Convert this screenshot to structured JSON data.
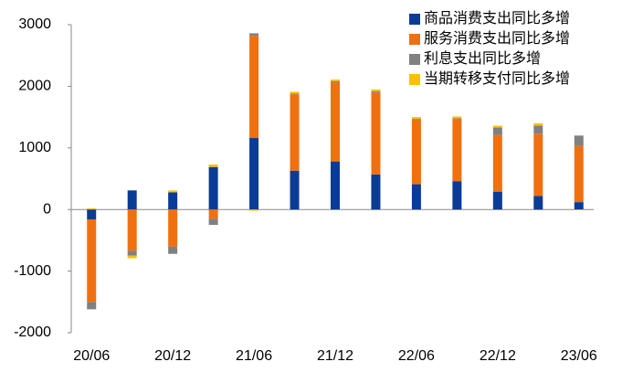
{
  "chart_data": {
    "type": "bar",
    "stacked": true,
    "categories": [
      "20/06",
      null,
      "20/12",
      null,
      "21/06",
      null,
      "21/12",
      null,
      "22/06",
      null,
      "22/12",
      null,
      "23/06"
    ],
    "series": [
      {
        "name": "商品消费支出同比多增",
        "color": "#0a3b96",
        "values": [
          -160,
          310,
          280,
          690,
          1160,
          630,
          780,
          570,
          410,
          460,
          290,
          220,
          120
        ]
      },
      {
        "name": "服务消费支出同比多增",
        "color": "#f07010",
        "values": [
          -1340,
          -670,
          -600,
          -150,
          1660,
          1240,
          1280,
          1330,
          1040,
          1000,
          920,
          1010,
          910
        ]
      },
      {
        "name": "利息支出同比多增",
        "color": "#808080",
        "values": [
          -120,
          -80,
          -120,
          -100,
          40,
          10,
          20,
          20,
          20,
          20,
          120,
          130,
          170
        ]
      },
      {
        "name": "当期转移支付同比多增",
        "color": "#ffc000",
        "values": [
          20,
          -40,
          30,
          40,
          -20,
          30,
          30,
          30,
          30,
          30,
          30,
          40,
          -10
        ]
      }
    ],
    "ylim": [
      -2000,
      3000
    ],
    "yticks": [
      -2000,
      -1000,
      0,
      1000,
      2000,
      3000
    ],
    "grid": false
  }
}
